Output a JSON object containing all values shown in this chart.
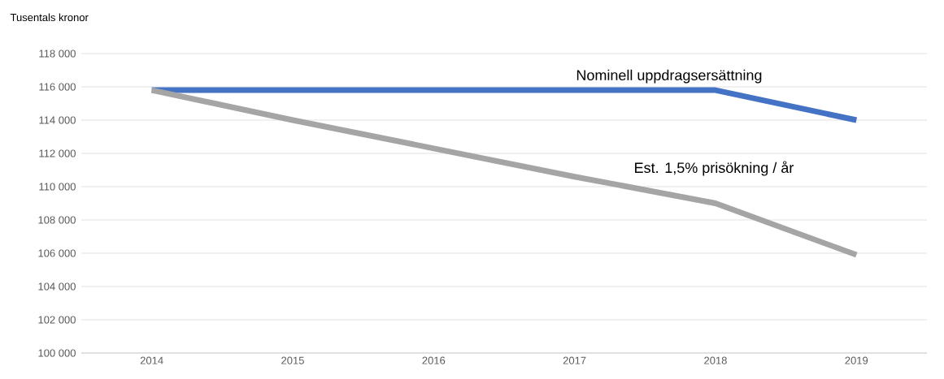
{
  "chart_data": {
    "type": "line",
    "ylabel": "Tusentals kronor",
    "categories": [
      "2014",
      "2015",
      "2016",
      "2017",
      "2018",
      "2019"
    ],
    "series": [
      {
        "name": "Nominell uppdragsersättning",
        "color": "#4472c4",
        "values": [
          115800,
          115800,
          115800,
          115800,
          115800,
          114000
        ]
      },
      {
        "name": "Est. 1,5% prisökning / år",
        "color": "#a5a5a5",
        "values": [
          115800,
          114000,
          112300,
          110600,
          109000,
          105900
        ]
      }
    ],
    "ylim": [
      100000,
      118000
    ],
    "yticks": [
      {
        "value": 100000,
        "label": "100 000"
      },
      {
        "value": 102000,
        "label": "102 000"
      },
      {
        "value": 104000,
        "label": "104 000"
      },
      {
        "value": 106000,
        "label": "106 000"
      },
      {
        "value": 108000,
        "label": "108 000"
      },
      {
        "value": 110000,
        "label": "110 000"
      },
      {
        "value": 112000,
        "label": "112 000"
      },
      {
        "value": 114000,
        "label": "114 000"
      },
      {
        "value": 116000,
        "label": "116 000"
      },
      {
        "value": 118000,
        "label": "118 000"
      }
    ],
    "grid": "y",
    "marker": "none",
    "line_style": "solid",
    "legend": false
  }
}
